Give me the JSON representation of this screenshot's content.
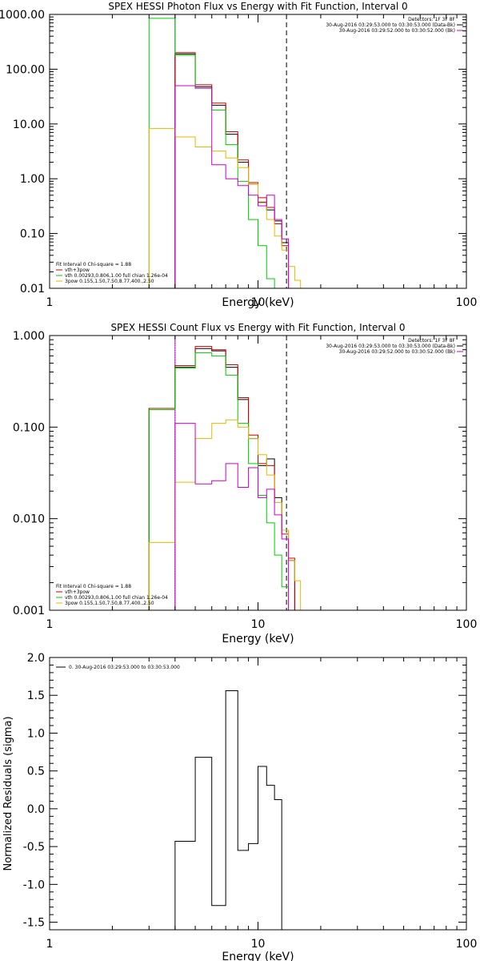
{
  "chart_data": [
    {
      "type": "line",
      "title": "SPEX HESSI Photon Flux vs Energy with Fit Function, Interval 0",
      "xlabel": "Energy (keV)",
      "ylabel": "",
      "x_scale": "log",
      "y_scale": "log",
      "xlim": [
        1,
        100
      ],
      "ylim": [
        0.01,
        1000
      ],
      "x_ticks": [
        {
          "v": 1,
          "label": "1"
        },
        {
          "v": 10,
          "label": "10"
        },
        {
          "v": 100,
          "label": "100"
        }
      ],
      "y_ticks": [
        {
          "v": 0.01,
          "label": "0.01"
        },
        {
          "v": 0.1,
          "label": "0.10"
        },
        {
          "v": 1,
          "label": "1.00"
        },
        {
          "v": 10,
          "label": "10.00"
        },
        {
          "v": 100,
          "label": "100.00"
        },
        {
          "v": 1000,
          "label": "1000.00"
        }
      ],
      "vlines": [
        {
          "x": 4.0,
          "style": "dotted",
          "color": "#000000"
        },
        {
          "x": 4.0,
          "style": "solid",
          "color": "#cc00cc"
        },
        {
          "x": 13.7,
          "style": "dashed",
          "color": "#000000"
        }
      ],
      "legend_top_right": [
        {
          "text": "Detectors: 1F 3F 8F",
          "color": "#000000"
        },
        {
          "text": "30-Aug-2016 03:29:53.000 to 03:30:53.000 (Data-Bk)",
          "color": "#000000"
        },
        {
          "text": "30-Aug-2016 03:29:52.000 to 03:30:52.000 (Bk)",
          "color": "#cc00cc"
        }
      ],
      "legend_bottom_left": [
        {
          "text": "Fit Interval 0   Chi-square = 1.88",
          "color": "#000000"
        },
        {
          "text": "vth+3pow",
          "color": "#cc0000"
        },
        {
          "text": "vth 0.00293,0.806,1.00   full chian 1.26e-04",
          "color": "#00cc00"
        },
        {
          "text": "3pow 0.155,1.50,7.50,8.77,400.,2.50",
          "color": "#e6b800"
        }
      ],
      "bin_edges": [
        3.0,
        4.0,
        5.0,
        6.0,
        7.0,
        8.0,
        9.0,
        10.0,
        11.0,
        12.0,
        13.0,
        14.0,
        15.0,
        16.0,
        17.0
      ],
      "series": [
        {
          "color": "#000000",
          "values": [
            null,
            190,
            48,
            22,
            6.5,
            2.0,
            0.8,
            0.37,
            0.27,
            0.17,
            0.068,
            null,
            null,
            null
          ]
        },
        {
          "color": "#cc0000",
          "values": [
            null,
            200,
            52,
            24,
            7.2,
            2.2,
            0.85,
            0.45,
            0.3,
            0.15,
            0.06,
            null,
            null,
            null
          ]
        },
        {
          "color": "#00cc00",
          "values": [
            850,
            180,
            45,
            18,
            4.2,
            0.9,
            0.18,
            0.06,
            0.015,
            0.0,
            null,
            null,
            null,
            null
          ]
        },
        {
          "color": "#e6b800",
          "values": [
            8.3,
            5.8,
            3.8,
            3.2,
            2.4,
            1.6,
            0.8,
            0.38,
            0.18,
            0.09,
            0.05,
            0.025,
            0.014,
            null
          ]
        },
        {
          "color": "#cc00cc",
          "values": [
            null,
            50,
            45,
            1.8,
            1.0,
            0.75,
            0.5,
            0.32,
            0.5,
            0.18,
            0.08,
            null,
            null,
            null
          ]
        }
      ]
    },
    {
      "type": "line",
      "title": "SPEX HESSI Count Flux vs Energy with Fit Function, Interval 0",
      "xlabel": "Energy (keV)",
      "ylabel": "",
      "x_scale": "log",
      "y_scale": "log",
      "xlim": [
        1,
        100
      ],
      "ylim": [
        0.001,
        1
      ],
      "x_ticks": [
        {
          "v": 1,
          "label": "1"
        },
        {
          "v": 10,
          "label": "10"
        },
        {
          "v": 100,
          "label": "100"
        }
      ],
      "y_ticks": [
        {
          "v": 0.001,
          "label": "0.001"
        },
        {
          "v": 0.01,
          "label": "0.010"
        },
        {
          "v": 0.1,
          "label": "0.100"
        },
        {
          "v": 1,
          "label": "1.000"
        }
      ],
      "vlines": [
        {
          "x": 4.0,
          "style": "dotted",
          "color": "#000000"
        },
        {
          "x": 4.0,
          "style": "solid",
          "color": "#cc00cc"
        },
        {
          "x": 13.7,
          "style": "dashed",
          "color": "#000000"
        }
      ],
      "legend_top_right": [
        {
          "text": "Detectors: 1F 3F 8F",
          "color": "#000000"
        },
        {
          "text": "30-Aug-2016 03:29:53.000 to 03:30:53.000 (Data-Bk)",
          "color": "#000000"
        },
        {
          "text": "30-Aug-2016 03:29:52.000 to 03:30:52.000 (Bk)",
          "color": "#cc00cc"
        }
      ],
      "legend_bottom_left": [
        {
          "text": "Fit Interval 0   Chi-square = 1.88",
          "color": "#000000"
        },
        {
          "text": "vth+3pow",
          "color": "#cc0000"
        },
        {
          "text": "vth 0.00293,0.806,1.00   full chian 1.26e-04",
          "color": "#00cc00"
        },
        {
          "text": "3pow 0.155,1.50,7.50,8.77,400.,2.50",
          "color": "#e6b800"
        }
      ],
      "bin_edges": [
        3.0,
        4.0,
        5.0,
        6.0,
        7.0,
        8.0,
        9.0,
        10.0,
        11.0,
        12.0,
        13.0,
        14.0,
        15.0,
        16.0,
        17.0
      ],
      "series": [
        {
          "color": "#000000",
          "values": [
            0.16,
            0.45,
            0.72,
            0.68,
            0.45,
            0.2,
            0.075,
            0.038,
            0.045,
            0.017,
            0.0075,
            0.0035,
            null,
            null
          ]
        },
        {
          "color": "#cc0000",
          "values": [
            0.16,
            0.47,
            0.76,
            0.7,
            0.48,
            0.21,
            0.082,
            0.04,
            0.038,
            0.015,
            0.0068,
            0.0037,
            null,
            null
          ]
        },
        {
          "color": "#00cc00",
          "values": [
            0.155,
            0.44,
            0.65,
            0.6,
            0.37,
            0.11,
            0.04,
            0.018,
            0.009,
            0.004,
            0.0018,
            null,
            null,
            null
          ]
        },
        {
          "color": "#e6b800",
          "values": [
            0.0055,
            0.025,
            0.075,
            0.11,
            0.12,
            0.1,
            0.075,
            0.05,
            0.03,
            0.015,
            0.0075,
            0.0035,
            0.0021,
            null
          ]
        },
        {
          "color": "#cc00cc",
          "values": [
            null,
            0.11,
            0.024,
            0.026,
            0.04,
            0.022,
            0.036,
            0.017,
            0.021,
            0.011,
            0.006,
            null,
            null,
            null
          ]
        }
      ]
    },
    {
      "type": "line",
      "title": "",
      "xlabel": "Energy (keV)",
      "ylabel": "Normalized Residuals (sigma)",
      "x_scale": "log",
      "y_scale": "linear",
      "xlim": [
        1,
        100
      ],
      "ylim": [
        -1.6,
        2.0
      ],
      "x_ticks": [
        {
          "v": 1,
          "label": "1"
        },
        {
          "v": 10,
          "label": "10"
        },
        {
          "v": 100,
          "label": "100"
        }
      ],
      "y_ticks": [
        {
          "v": -1.5,
          "label": "-1.5"
        },
        {
          "v": -1.0,
          "label": "-1.0"
        },
        {
          "v": -0.5,
          "label": "-0.5"
        },
        {
          "v": 0.0,
          "label": "0.0"
        },
        {
          "v": 0.5,
          "label": "0.5"
        },
        {
          "v": 1.0,
          "label": "1.0"
        },
        {
          "v": 1.5,
          "label": "1.5"
        },
        {
          "v": 2.0,
          "label": "2.0"
        }
      ],
      "legend_top_left": [
        {
          "text": "0. 30-Aug-2016 03:29:53.000 to 03:30:53.000",
          "color": "#000000"
        }
      ],
      "bin_edges": [
        4.0,
        5.0,
        6.0,
        7.0,
        8.0,
        9.0,
        10.0,
        11.0,
        12.0,
        13.0,
        14.0
      ],
      "series": [
        {
          "color": "#000000",
          "values": [
            -0.43,
            0.68,
            -1.28,
            1.56,
            -0.55,
            -0.46,
            0.56,
            0.31,
            0.12,
            -1.6
          ]
        }
      ]
    }
  ]
}
